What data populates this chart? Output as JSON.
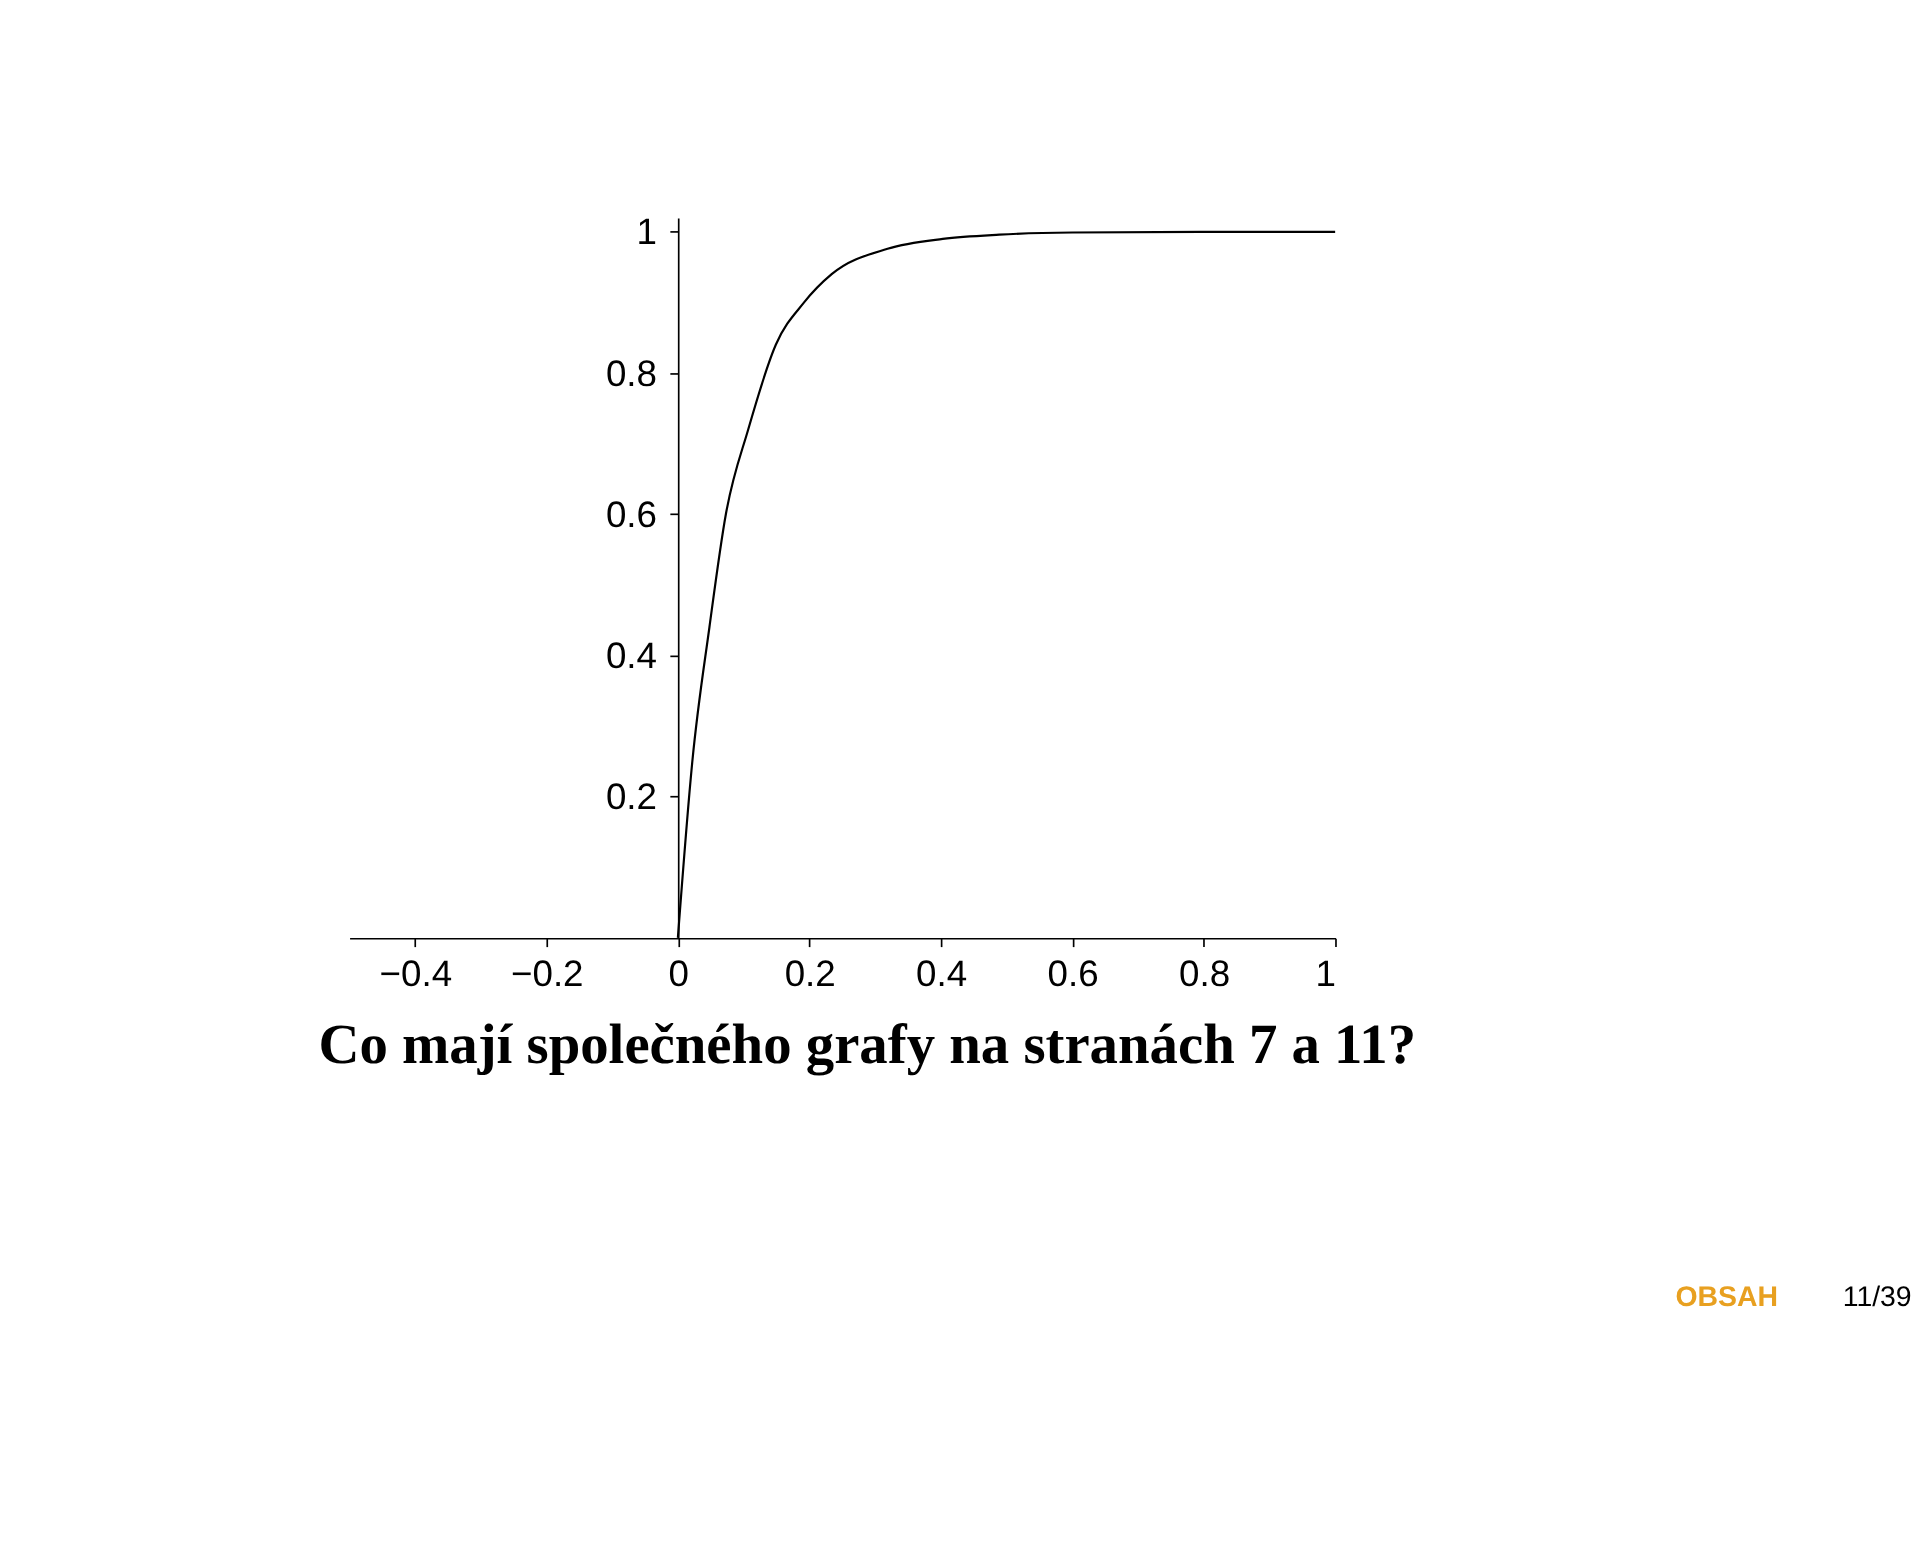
{
  "chart_data": {
    "type": "line",
    "title": "Co mají společného grafy na stranách 7 a 11?",
    "x": [
      0,
      0.022,
      0.048,
      0.073,
      0.107,
      0.149,
      0.192,
      0.234,
      0.319,
      0.403,
      0.489,
      0.6,
      0.8,
      1.0
    ],
    "series": [
      {
        "color": "#000000",
        "values": [
          0,
          0.25,
          0.44,
          0.6,
          0.72,
          0.84,
          0.9,
          0.94,
          0.976,
          0.99,
          0.996,
          0.999,
          1.0,
          1.0
        ]
      }
    ],
    "xlim": [
      -0.5,
      1.0
    ],
    "ylim": [
      0,
      1.02
    ],
    "xticks": [
      -0.4,
      -0.2,
      0,
      0.2,
      0.4,
      0.6,
      0.8,
      1
    ],
    "yticks": [
      0.2,
      0.4,
      0.6,
      0.8,
      1
    ],
    "grid": false,
    "annotations": [
      "OBSAH",
      "11/39"
    ]
  }
}
